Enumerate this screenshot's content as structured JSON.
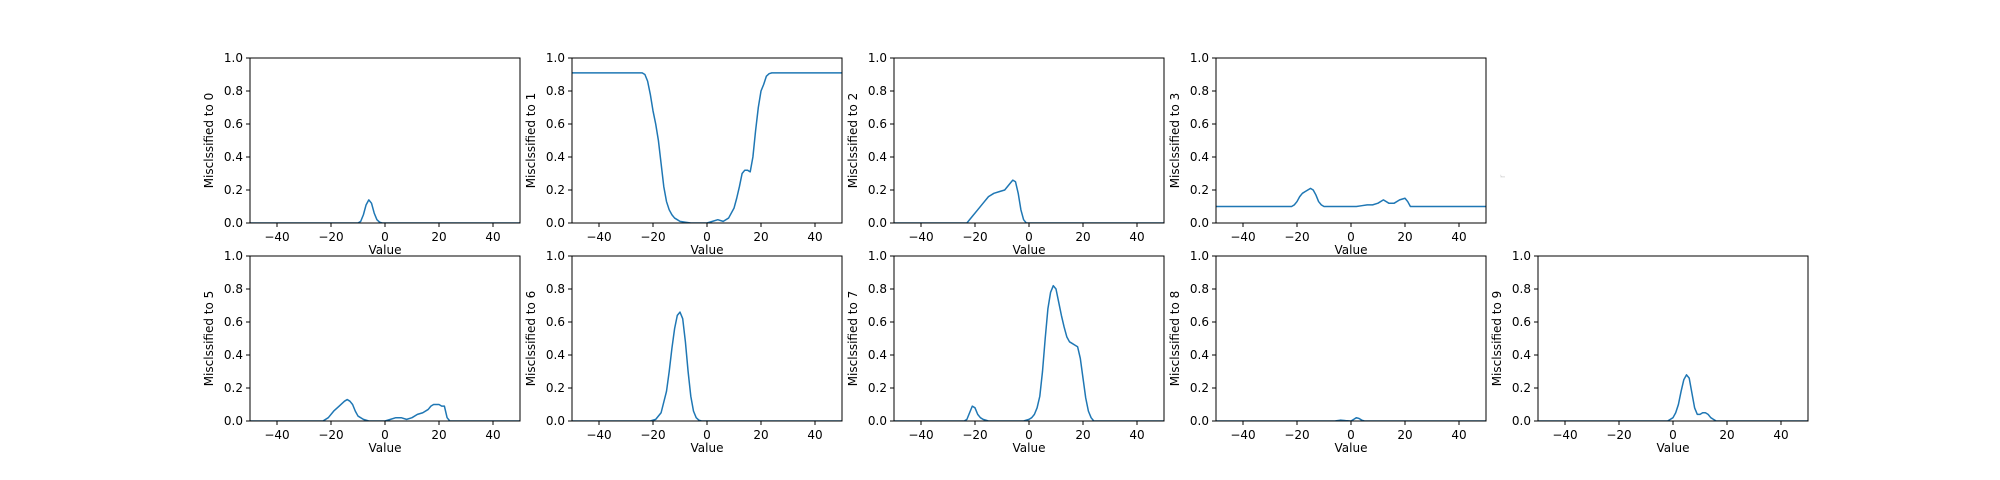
{
  "figure": {
    "stray_mark": "r"
  },
  "chart_data": [
    {
      "type": "line",
      "xlabel": "Value",
      "ylabel": "Misclssified to 0",
      "xlim": [
        -50,
        50
      ],
      "ylim": [
        0,
        1
      ],
      "xticks": [
        -40,
        -20,
        0,
        20,
        40
      ],
      "xtick_labels": [
        "−40",
        "−20",
        "0",
        "20",
        "40"
      ],
      "yticks": [
        0,
        0.2,
        0.4,
        0.6,
        0.8,
        1.0
      ],
      "ytick_labels": [
        "0.0",
        "0.2",
        "0.4",
        "0.6",
        "0.8",
        "1.0"
      ],
      "series_color": "#1f77b4",
      "x": [
        -50,
        -10,
        -9,
        -8,
        -7,
        -6,
        -5,
        -4,
        -3,
        -2,
        -1,
        50
      ],
      "y": [
        0,
        0,
        0.01,
        0.05,
        0.11,
        0.14,
        0.12,
        0.06,
        0.02,
        0.005,
        0,
        0
      ]
    },
    {
      "type": "line",
      "xlabel": "Value",
      "ylabel": "Misclssified to 1",
      "xlim": [
        -50,
        50
      ],
      "ylim": [
        0,
        1
      ],
      "xticks": [
        -40,
        -20,
        0,
        20,
        40
      ],
      "xtick_labels": [
        "−40",
        "−20",
        "0",
        "20",
        "40"
      ],
      "yticks": [
        0,
        0.2,
        0.4,
        0.6,
        0.8,
        1.0
      ],
      "ytick_labels": [
        "0.0",
        "0.2",
        "0.4",
        "0.6",
        "0.8",
        "1.0"
      ],
      "series_color": "#1f77b4",
      "x": [
        -50,
        -24,
        -23,
        -22,
        -21,
        -20,
        -19,
        -18,
        -17,
        -16,
        -15,
        -14,
        -13,
        -12,
        -11,
        -10,
        -8,
        -6,
        -4,
        -2,
        0,
        2,
        4,
        6,
        8,
        10,
        11,
        12,
        13,
        14,
        15,
        16,
        17,
        18,
        19,
        20,
        21,
        22,
        23,
        24,
        50
      ],
      "y": [
        0.91,
        0.91,
        0.9,
        0.86,
        0.78,
        0.68,
        0.6,
        0.5,
        0.36,
        0.22,
        0.13,
        0.08,
        0.05,
        0.03,
        0.02,
        0.01,
        0.005,
        0,
        0,
        0,
        0,
        0.01,
        0.02,
        0.01,
        0.03,
        0.09,
        0.15,
        0.22,
        0.3,
        0.32,
        0.32,
        0.31,
        0.4,
        0.56,
        0.7,
        0.8,
        0.84,
        0.89,
        0.905,
        0.91,
        0.91
      ]
    },
    {
      "type": "line",
      "xlabel": "Value",
      "ylabel": "Misclssified to 2",
      "xlim": [
        -50,
        50
      ],
      "ylim": [
        0,
        1
      ],
      "xticks": [
        -40,
        -20,
        0,
        20,
        40
      ],
      "xtick_labels": [
        "−40",
        "−20",
        "0",
        "20",
        "40"
      ],
      "yticks": [
        0,
        0.2,
        0.4,
        0.6,
        0.8,
        1.0
      ],
      "ytick_labels": [
        "0.0",
        "0.2",
        "0.4",
        "0.6",
        "0.8",
        "1.0"
      ],
      "series_color": "#1f77b4",
      "x": [
        -50,
        -23,
        -21,
        -19,
        -17,
        -15,
        -13,
        -11,
        -9,
        -7,
        -6,
        -5,
        -4,
        -3,
        -2,
        -1,
        50
      ],
      "y": [
        0,
        0,
        0.04,
        0.08,
        0.12,
        0.16,
        0.18,
        0.19,
        0.2,
        0.24,
        0.26,
        0.25,
        0.18,
        0.08,
        0.02,
        0,
        0
      ]
    },
    {
      "type": "line",
      "xlabel": "Value",
      "ylabel": "Misclssified to 3",
      "xlim": [
        -50,
        50
      ],
      "ylim": [
        0,
        1
      ],
      "xticks": [
        -40,
        -20,
        0,
        20,
        40
      ],
      "xtick_labels": [
        "−40",
        "−20",
        "0",
        "20",
        "40"
      ],
      "yticks": [
        0,
        0.2,
        0.4,
        0.6,
        0.8,
        1.0
      ],
      "ytick_labels": [
        "0.0",
        "0.2",
        "0.4",
        "0.6",
        "0.8",
        "1.0"
      ],
      "series_color": "#1f77b4",
      "x": [
        -50,
        -22,
        -21,
        -20,
        -19,
        -18,
        -17,
        -16,
        -15,
        -14,
        -13,
        -12,
        -11,
        -10,
        -9,
        -8,
        -6,
        -4,
        -2,
        0,
        2,
        4,
        6,
        8,
        10,
        12,
        14,
        16,
        18,
        20,
        21,
        22,
        23,
        50
      ],
      "y": [
        0.1,
        0.1,
        0.11,
        0.13,
        0.16,
        0.18,
        0.19,
        0.2,
        0.21,
        0.2,
        0.17,
        0.13,
        0.11,
        0.1,
        0.1,
        0.1,
        0.1,
        0.1,
        0.1,
        0.1,
        0.1,
        0.105,
        0.11,
        0.11,
        0.12,
        0.14,
        0.12,
        0.12,
        0.14,
        0.15,
        0.13,
        0.1,
        0.1,
        0.1
      ]
    },
    {
      "type": "line",
      "xlabel": "Value",
      "ylabel": "Misclssified to 5",
      "xlim": [
        -50,
        50
      ],
      "ylim": [
        0,
        1
      ],
      "xticks": [
        -40,
        -20,
        0,
        20,
        40
      ],
      "xtick_labels": [
        "−40",
        "−20",
        "0",
        "20",
        "40"
      ],
      "yticks": [
        0,
        0.2,
        0.4,
        0.6,
        0.8,
        1.0
      ],
      "ytick_labels": [
        "0.0",
        "0.2",
        "0.4",
        "0.6",
        "0.8",
        "1.0"
      ],
      "series_color": "#1f77b4",
      "x": [
        -50,
        -23,
        -21,
        -19,
        -17,
        -15,
        -14,
        -13,
        -12,
        -11,
        -10,
        -8,
        -6,
        -4,
        -2,
        0,
        2,
        4,
        6,
        8,
        10,
        12,
        14,
        16,
        17,
        18,
        20,
        21,
        22,
        23,
        24,
        50
      ],
      "y": [
        0,
        0,
        0.02,
        0.06,
        0.09,
        0.12,
        0.13,
        0.12,
        0.1,
        0.06,
        0.03,
        0.01,
        0,
        0,
        0,
        0,
        0.01,
        0.02,
        0.02,
        0.01,
        0.02,
        0.04,
        0.05,
        0.07,
        0.09,
        0.1,
        0.1,
        0.09,
        0.09,
        0.02,
        0,
        0
      ]
    },
    {
      "type": "line",
      "xlabel": "Value",
      "ylabel": "Misclssified to 6",
      "xlim": [
        -50,
        50
      ],
      "ylim": [
        0,
        1
      ],
      "xticks": [
        -40,
        -20,
        0,
        20,
        40
      ],
      "xtick_labels": [
        "−40",
        "−20",
        "0",
        "20",
        "40"
      ],
      "yticks": [
        0,
        0.2,
        0.4,
        0.6,
        0.8,
        1.0
      ],
      "ytick_labels": [
        "0.0",
        "0.2",
        "0.4",
        "0.6",
        "0.8",
        "1.0"
      ],
      "series_color": "#1f77b4",
      "x": [
        -50,
        -21,
        -19,
        -17,
        -15,
        -14,
        -13,
        -12,
        -11,
        -10,
        -9,
        -8,
        -7,
        -6,
        -5,
        -4,
        -3,
        -2,
        50
      ],
      "y": [
        0,
        0,
        0.01,
        0.05,
        0.18,
        0.3,
        0.44,
        0.56,
        0.64,
        0.66,
        0.62,
        0.48,
        0.3,
        0.15,
        0.06,
        0.02,
        0.005,
        0,
        0
      ]
    },
    {
      "type": "line",
      "xlabel": "Value",
      "ylabel": "Misclssified to 7",
      "xlim": [
        -50,
        50
      ],
      "ylim": [
        0,
        1
      ],
      "xticks": [
        -40,
        -20,
        0,
        20,
        40
      ],
      "xtick_labels": [
        "−40",
        "−20",
        "0",
        "20",
        "40"
      ],
      "yticks": [
        0,
        0.2,
        0.4,
        0.6,
        0.8,
        1.0
      ],
      "ytick_labels": [
        "0.0",
        "0.2",
        "0.4",
        "0.6",
        "0.8",
        "1.0"
      ],
      "series_color": "#1f77b4",
      "x": [
        -50,
        -24,
        -23,
        -22,
        -21,
        -20,
        -19,
        -18,
        -17,
        -15,
        -10,
        -5,
        -2,
        0,
        1,
        2,
        3,
        4,
        5,
        6,
        7,
        8,
        9,
        10,
        11,
        12,
        13,
        14,
        15,
        16,
        17,
        18,
        19,
        20,
        21,
        22,
        23,
        24,
        50
      ],
      "y": [
        0,
        0,
        0.01,
        0.05,
        0.09,
        0.08,
        0.04,
        0.02,
        0.01,
        0,
        0,
        0,
        0,
        0.01,
        0.02,
        0.04,
        0.08,
        0.15,
        0.3,
        0.5,
        0.68,
        0.78,
        0.82,
        0.8,
        0.72,
        0.64,
        0.57,
        0.51,
        0.48,
        0.47,
        0.46,
        0.45,
        0.38,
        0.26,
        0.14,
        0.06,
        0.02,
        0,
        0
      ]
    },
    {
      "type": "line",
      "xlabel": "Value",
      "ylabel": "Misclssified to 8",
      "xlim": [
        -50,
        50
      ],
      "ylim": [
        0,
        1
      ],
      "xticks": [
        -40,
        -20,
        0,
        20,
        40
      ],
      "xtick_labels": [
        "−40",
        "−20",
        "0",
        "20",
        "40"
      ],
      "yticks": [
        0,
        0.2,
        0.4,
        0.6,
        0.8,
        1.0
      ],
      "ytick_labels": [
        "0.0",
        "0.2",
        "0.4",
        "0.6",
        "0.8",
        "1.0"
      ],
      "series_color": "#1f77b4",
      "x": [
        -50,
        -6,
        -4,
        -2,
        0,
        1,
        2,
        3,
        4,
        5,
        50
      ],
      "y": [
        0,
        0,
        0.005,
        0.002,
        0,
        0.01,
        0.02,
        0.015,
        0.005,
        0,
        0
      ]
    },
    {
      "type": "line",
      "xlabel": "Value",
      "ylabel": "Misclssified to 9",
      "xlim": [
        -50,
        50
      ],
      "ylim": [
        0,
        1
      ],
      "xticks": [
        -40,
        -20,
        0,
        20,
        40
      ],
      "xtick_labels": [
        "−40",
        "−20",
        "0",
        "20",
        "40"
      ],
      "yticks": [
        0,
        0.2,
        0.4,
        0.6,
        0.8,
        1.0
      ],
      "ytick_labels": [
        "0.0",
        "0.2",
        "0.4",
        "0.6",
        "0.8",
        "1.0"
      ],
      "series_color": "#1f77b4",
      "x": [
        -50,
        -2,
        -1,
        0,
        1,
        2,
        3,
        4,
        5,
        6,
        7,
        8,
        9,
        10,
        11,
        12,
        13,
        14,
        15,
        16,
        17,
        50
      ],
      "y": [
        0,
        0,
        0.01,
        0.02,
        0.05,
        0.1,
        0.18,
        0.25,
        0.28,
        0.26,
        0.17,
        0.08,
        0.04,
        0.04,
        0.05,
        0.05,
        0.04,
        0.02,
        0.01,
        0,
        0,
        0
      ]
    }
  ]
}
